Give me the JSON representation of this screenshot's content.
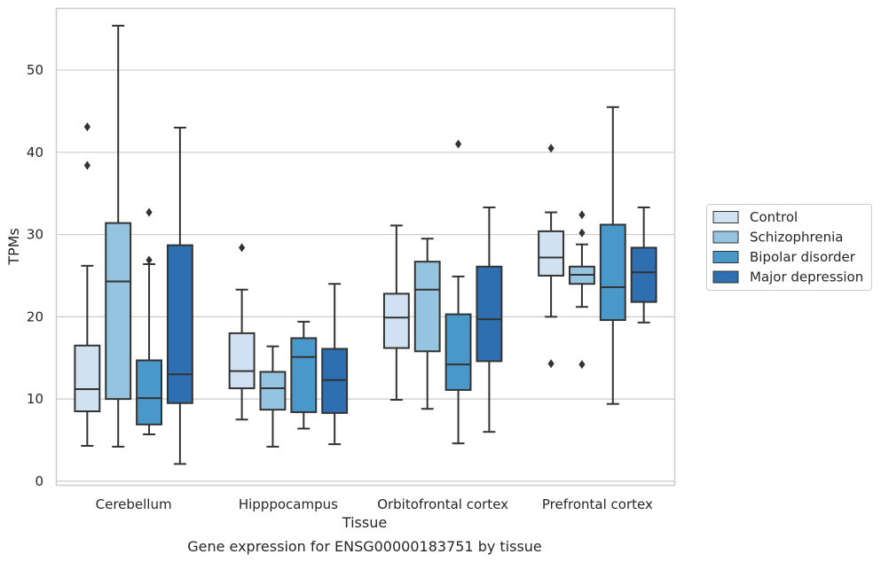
{
  "chart_data": {
    "type": "box",
    "caption": "Gene expression for ENSG00000183751 by tissue",
    "xlabel": "Tissue",
    "ylabel": "TPMs",
    "ylim": [
      -0.5,
      57.5
    ],
    "yticks": [
      0,
      10,
      20,
      30,
      40,
      50
    ],
    "grid": "horizontal",
    "legend_placement": "right-center",
    "categories": [
      "Cerebellum",
      "Hipppocampus",
      "Orbitofrontal cortex",
      "Prefrontal cortex"
    ],
    "series": [
      {
        "name": "Control",
        "color": "#d0e1f2",
        "boxes": [
          {
            "whislo": 4.3,
            "q1": 8.5,
            "med": 11.2,
            "q3": 16.5,
            "whishi": 26.2,
            "fliers": [
              38.4,
              43.1
            ]
          },
          {
            "whislo": 7.5,
            "q1": 11.3,
            "med": 13.4,
            "q3": 18.0,
            "whishi": 23.3,
            "fliers": [
              28.4
            ]
          },
          {
            "whislo": 9.9,
            "q1": 16.2,
            "med": 19.9,
            "q3": 22.8,
            "whishi": 31.1,
            "fliers": []
          },
          {
            "whislo": 20.0,
            "q1": 25.0,
            "med": 27.2,
            "q3": 30.4,
            "whishi": 32.7,
            "fliers": [
              14.3,
              40.5
            ]
          }
        ]
      },
      {
        "name": "Schizophrenia",
        "color": "#94c4df",
        "boxes": [
          {
            "whislo": 4.2,
            "q1": 10.0,
            "med": 24.3,
            "q3": 31.4,
            "whishi": 55.4,
            "fliers": []
          },
          {
            "whislo": 4.2,
            "q1": 8.7,
            "med": 11.3,
            "q3": 13.3,
            "whishi": 16.4,
            "fliers": []
          },
          {
            "whislo": 8.8,
            "q1": 15.8,
            "med": 23.3,
            "q3": 26.7,
            "whishi": 29.5,
            "fliers": []
          },
          {
            "whislo": 21.2,
            "q1": 24.0,
            "med": 25.1,
            "q3": 26.1,
            "whishi": 28.8,
            "fliers": [
              14.2,
              30.2,
              32.4
            ]
          }
        ]
      },
      {
        "name": "Bipolar disorder",
        "color": "#4a98c9",
        "boxes": [
          {
            "whislo": 5.7,
            "q1": 6.9,
            "med": 10.1,
            "q3": 14.7,
            "whishi": 26.4,
            "fliers": [
              26.9,
              32.7
            ]
          },
          {
            "whislo": 6.4,
            "q1": 8.4,
            "med": 15.1,
            "q3": 17.4,
            "whishi": 19.4,
            "fliers": []
          },
          {
            "whislo": 4.6,
            "q1": 11.1,
            "med": 14.2,
            "q3": 20.3,
            "whishi": 24.9,
            "fliers": [
              41.0
            ]
          },
          {
            "whislo": 9.4,
            "q1": 19.6,
            "med": 23.6,
            "q3": 31.2,
            "whishi": 45.5,
            "fliers": []
          }
        ]
      },
      {
        "name": "Major depression",
        "color": "#2e6fb1",
        "boxes": [
          {
            "whislo": 2.1,
            "q1": 9.5,
            "med": 13.0,
            "q3": 28.7,
            "whishi": 43.0,
            "fliers": []
          },
          {
            "whislo": 4.5,
            "q1": 8.3,
            "med": 12.3,
            "q3": 16.1,
            "whishi": 24.0,
            "fliers": []
          },
          {
            "whislo": 6.0,
            "q1": 14.6,
            "med": 19.7,
            "q3": 26.1,
            "whishi": 33.3,
            "fliers": []
          },
          {
            "whislo": 19.3,
            "q1": 21.8,
            "med": 25.4,
            "q3": 28.4,
            "whishi": 33.3,
            "fliers": []
          }
        ]
      }
    ]
  }
}
